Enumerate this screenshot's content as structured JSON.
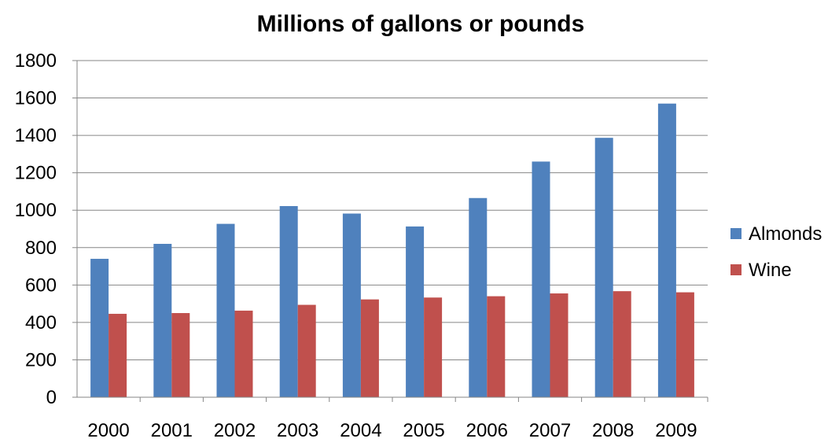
{
  "chart_data": {
    "type": "bar",
    "title": "Millions of gallons or pounds",
    "xlabel": "",
    "ylabel": "",
    "categories": [
      "2000",
      "2001",
      "2002",
      "2003",
      "2004",
      "2005",
      "2006",
      "2007",
      "2008",
      "2009"
    ],
    "series": [
      {
        "name": "Almonds",
        "color": "#4F81BD",
        "values": [
          740,
          820,
          927,
          1022,
          982,
          913,
          1065,
          1260,
          1387,
          1570
        ]
      },
      {
        "name": "Wine",
        "color": "#C0504D",
        "values": [
          446,
          450,
          463,
          494,
          523,
          533,
          540,
          555,
          567,
          561
        ]
      }
    ],
    "ylim": [
      0,
      1800
    ],
    "yticks": [
      0,
      200,
      400,
      600,
      800,
      1000,
      1200,
      1400,
      1600,
      1800
    ],
    "grid": true,
    "legend_position": "right"
  }
}
